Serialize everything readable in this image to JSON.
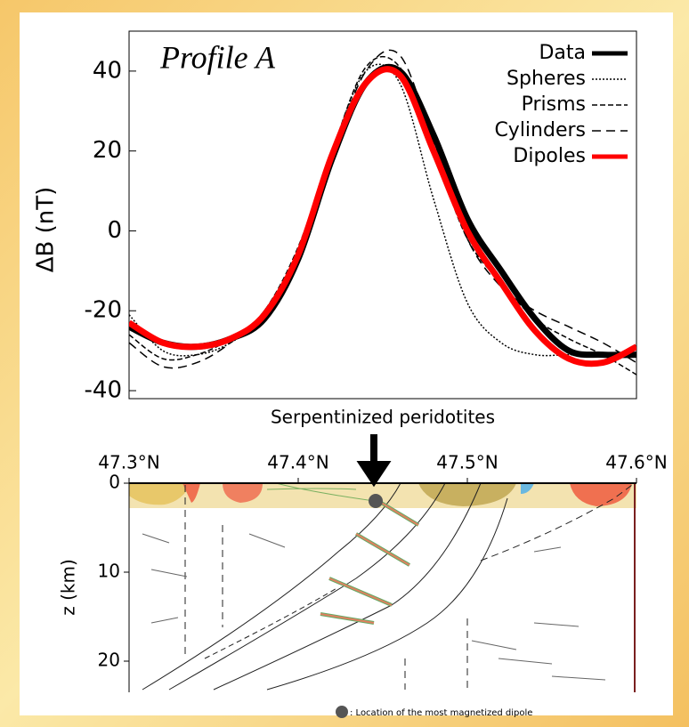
{
  "chart_data": [
    {
      "type": "line",
      "title": "Profile A",
      "ylabel": "ΔB (nT)",
      "x": [
        47.3,
        47.32,
        47.34,
        47.36,
        47.38,
        47.4,
        47.42,
        47.44,
        47.46,
        47.48,
        47.5,
        47.52,
        47.54,
        47.56,
        47.58,
        47.6
      ],
      "xlim": [
        47.3,
        47.6
      ],
      "ylim": [
        -42,
        50
      ],
      "yticks": [
        -40,
        -20,
        0,
        20,
        40
      ],
      "legend": "upper right",
      "series": [
        {
          "name": "Data",
          "color": "#000000",
          "style": "thick",
          "values": [
            -24,
            -28,
            -29,
            -27,
            -22,
            -7,
            18,
            37,
            40,
            24,
            3,
            -10,
            -22,
            -30,
            -31,
            -31
          ]
        },
        {
          "name": "Spheres",
          "color": "#000000",
          "style": "dotted",
          "values": [
            -21,
            -30,
            -31,
            -28,
            -21,
            -5,
            20,
            40,
            37,
            8,
            -18,
            -28,
            -31,
            -31,
            -31,
            -31
          ]
        },
        {
          "name": "Prisms",
          "color": "#000000",
          "style": "dashed",
          "values": [
            -26,
            -32,
            -31,
            -27,
            -20,
            -4,
            20,
            41,
            41,
            20,
            -2,
            -13,
            -22,
            -27,
            -31,
            -36
          ]
        },
        {
          "name": "Cylinders",
          "color": "#000000",
          "style": "longdash",
          "values": [
            -28,
            -34,
            -33,
            -28,
            -20,
            -5,
            19,
            40,
            44,
            22,
            -2,
            -14,
            -20,
            -24,
            -28,
            -33
          ]
        },
        {
          "name": "Dipoles",
          "color": "#ff0000",
          "style": "thick",
          "values": [
            -23,
            -28,
            -29,
            -27,
            -21,
            -6,
            19,
            37,
            39,
            20,
            0,
            -13,
            -25,
            -32,
            -33,
            -29
          ]
        }
      ]
    },
    {
      "type": "section",
      "ylabel": "z (km)",
      "annotation": "Serpentinized peridotites",
      "note": ": Location of the most magnetized dipole",
      "xlim": [
        47.3,
        47.6
      ],
      "xticks": [
        {
          "value": 47.3,
          "label": "47.3°N"
        },
        {
          "value": 47.4,
          "label": "47.4°N"
        },
        {
          "value": 47.5,
          "label": "47.5°N"
        },
        {
          "value": 47.6,
          "label": "47.6°N"
        }
      ],
      "ylim": [
        0,
        23.5
      ],
      "yticks": [
        0,
        10,
        20
      ]
    }
  ]
}
